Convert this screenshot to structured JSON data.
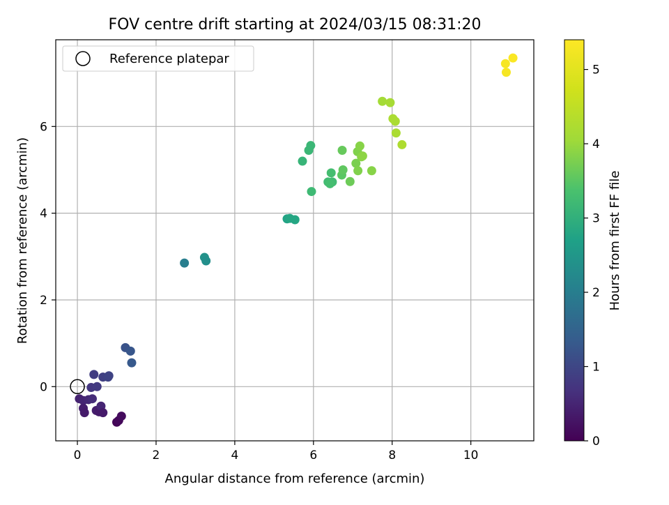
{
  "chart_data": {
    "type": "scatter",
    "title": "FOV centre drift starting at 2024/03/15 08:31:20",
    "xlabel": "Angular distance from reference (arcmin)",
    "ylabel": "Rotation from reference (arcmin)",
    "xlim": [
      -0.55,
      11.6
    ],
    "ylim": [
      -1.25,
      8.0
    ],
    "xticks": [
      0,
      2,
      4,
      6,
      8,
      10
    ],
    "yticks": [
      0,
      2,
      4,
      6
    ],
    "grid": true,
    "legend": {
      "position": "top-left",
      "entries": [
        "Reference platepar"
      ]
    },
    "reference_point": {
      "x": 0,
      "y": 0,
      "label": "Reference platepar"
    },
    "colorbar": {
      "label": "Hours from first FF file",
      "range": [
        0,
        5.4
      ],
      "ticks": [
        0,
        1,
        2,
        3,
        4,
        5
      ],
      "colormap": "viridis"
    },
    "points": [
      {
        "x": 0.05,
        "y": -0.28,
        "c": 0.45
      },
      {
        "x": 0.15,
        "y": -0.32,
        "c": 0.5
      },
      {
        "x": 0.28,
        "y": -0.3,
        "c": 0.55
      },
      {
        "x": 0.38,
        "y": -0.28,
        "c": 0.6
      },
      {
        "x": 0.15,
        "y": -0.5,
        "c": 0.4
      },
      {
        "x": 0.18,
        "y": -0.6,
        "c": 0.35
      },
      {
        "x": 0.48,
        "y": -0.55,
        "c": 0.4
      },
      {
        "x": 0.55,
        "y": -0.58,
        "c": 0.35
      },
      {
        "x": 0.6,
        "y": -0.45,
        "c": 0.5
      },
      {
        "x": 0.65,
        "y": -0.6,
        "c": 0.35
      },
      {
        "x": 0.35,
        "y": -0.02,
        "c": 0.75
      },
      {
        "x": 0.5,
        "y": 0.0,
        "c": 0.8
      },
      {
        "x": 0.42,
        "y": 0.28,
        "c": 0.85
      },
      {
        "x": 0.65,
        "y": 0.22,
        "c": 0.9
      },
      {
        "x": 0.78,
        "y": 0.22,
        "c": 0.95
      },
      {
        "x": 0.8,
        "y": 0.25,
        "c": 0.95
      },
      {
        "x": 1.0,
        "y": -0.82,
        "c": 0.05
      },
      {
        "x": 1.05,
        "y": -0.78,
        "c": 0.1
      },
      {
        "x": 1.12,
        "y": -0.68,
        "c": 0.15
      },
      {
        "x": 1.22,
        "y": 0.9,
        "c": 1.2
      },
      {
        "x": 1.35,
        "y": 0.82,
        "c": 1.25
      },
      {
        "x": 1.38,
        "y": 0.55,
        "c": 1.3
      },
      {
        "x": 2.72,
        "y": 2.85,
        "c": 2.0
      },
      {
        "x": 3.23,
        "y": 2.98,
        "c": 2.4
      },
      {
        "x": 3.27,
        "y": 2.9,
        "c": 2.35
      },
      {
        "x": 5.33,
        "y": 3.87,
        "c": 2.75
      },
      {
        "x": 5.4,
        "y": 3.88,
        "c": 2.8
      },
      {
        "x": 5.53,
        "y": 3.85,
        "c": 2.8
      },
      {
        "x": 5.72,
        "y": 5.2,
        "c": 3.1
      },
      {
        "x": 5.88,
        "y": 5.45,
        "c": 3.15
      },
      {
        "x": 5.93,
        "y": 5.56,
        "c": 3.15
      },
      {
        "x": 5.95,
        "y": 4.5,
        "c": 3.2
      },
      {
        "x": 6.37,
        "y": 4.72,
        "c": 3.25
      },
      {
        "x": 6.45,
        "y": 4.93,
        "c": 3.3
      },
      {
        "x": 6.48,
        "y": 4.72,
        "c": 3.25
      },
      {
        "x": 6.42,
        "y": 4.68,
        "c": 3.3
      },
      {
        "x": 6.73,
        "y": 5.45,
        "c": 3.6
      },
      {
        "x": 6.72,
        "y": 4.88,
        "c": 3.5
      },
      {
        "x": 6.75,
        "y": 5.0,
        "c": 3.55
      },
      {
        "x": 6.93,
        "y": 4.73,
        "c": 3.65
      },
      {
        "x": 7.08,
        "y": 5.15,
        "c": 3.75
      },
      {
        "x": 7.12,
        "y": 5.42,
        "c": 3.8
      },
      {
        "x": 7.13,
        "y": 4.98,
        "c": 3.8
      },
      {
        "x": 7.18,
        "y": 5.55,
        "c": 3.85
      },
      {
        "x": 7.22,
        "y": 5.3,
        "c": 3.85
      },
      {
        "x": 7.25,
        "y": 5.32,
        "c": 3.9
      },
      {
        "x": 7.48,
        "y": 4.98,
        "c": 3.85
      },
      {
        "x": 7.75,
        "y": 6.58,
        "c": 4.1
      },
      {
        "x": 7.95,
        "y": 6.55,
        "c": 4.15
      },
      {
        "x": 8.02,
        "y": 6.18,
        "c": 4.2
      },
      {
        "x": 8.08,
        "y": 6.12,
        "c": 4.2
      },
      {
        "x": 8.1,
        "y": 5.85,
        "c": 4.2
      },
      {
        "x": 8.25,
        "y": 5.58,
        "c": 4.25
      },
      {
        "x": 10.88,
        "y": 7.45,
        "c": 5.3
      },
      {
        "x": 10.9,
        "y": 7.25,
        "c": 5.3
      },
      {
        "x": 11.07,
        "y": 7.58,
        "c": 5.35
      }
    ]
  }
}
